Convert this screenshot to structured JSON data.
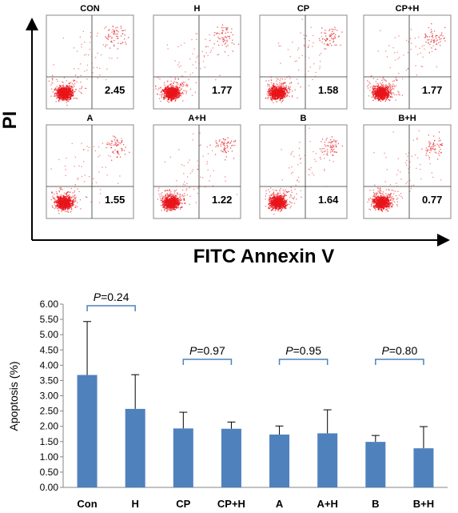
{
  "flow_panel": {
    "ylabel": "PI",
    "xlabel": "FITC Annexin V",
    "panels": [
      {
        "title": "CON",
        "value": "2.45"
      },
      {
        "title": "H",
        "value": "1.77"
      },
      {
        "title": "CP",
        "value": "1.58"
      },
      {
        "title": "CP+H",
        "value": "1.77"
      },
      {
        "title": "A",
        "value": "1.55"
      },
      {
        "title": "A+H",
        "value": "1.22"
      },
      {
        "title": "B",
        "value": "1.64"
      },
      {
        "title": "B+H",
        "value": "0.77"
      }
    ]
  },
  "chart_data": {
    "type": "bar",
    "title": "",
    "xlabel": "",
    "ylabel": "Apoptosis (%)",
    "categories": [
      "Con",
      "H",
      "CP",
      "CP+H",
      "A",
      "A+H",
      "B",
      "B+H"
    ],
    "values": [
      3.68,
      2.57,
      1.93,
      1.92,
      1.73,
      1.77,
      1.49,
      1.28
    ],
    "error_plus": [
      1.75,
      1.12,
      0.53,
      0.22,
      0.28,
      0.77,
      0.21,
      0.71
    ],
    "ylim": [
      0,
      6
    ],
    "yticks": [
      "0.00",
      "0.50",
      "1.00",
      "1.50",
      "2.00",
      "2.50",
      "3.00",
      "3.50",
      "4.00",
      "4.50",
      "5.00",
      "5.50",
      "6.00"
    ],
    "bar_color": "#4f81bd",
    "bracket_color": "#4f81bd",
    "grid": false,
    "annotations": [
      {
        "from": "Con",
        "to": "H",
        "label": "=0.24"
      },
      {
        "from": "CP",
        "to": "CP+H",
        "label": "=0.97"
      },
      {
        "from": "A",
        "to": "A+H",
        "label": "=0.95"
      },
      {
        "from": "B",
        "to": "B+H",
        "label": "=0.80"
      }
    ],
    "annotation_prefix": "P"
  }
}
